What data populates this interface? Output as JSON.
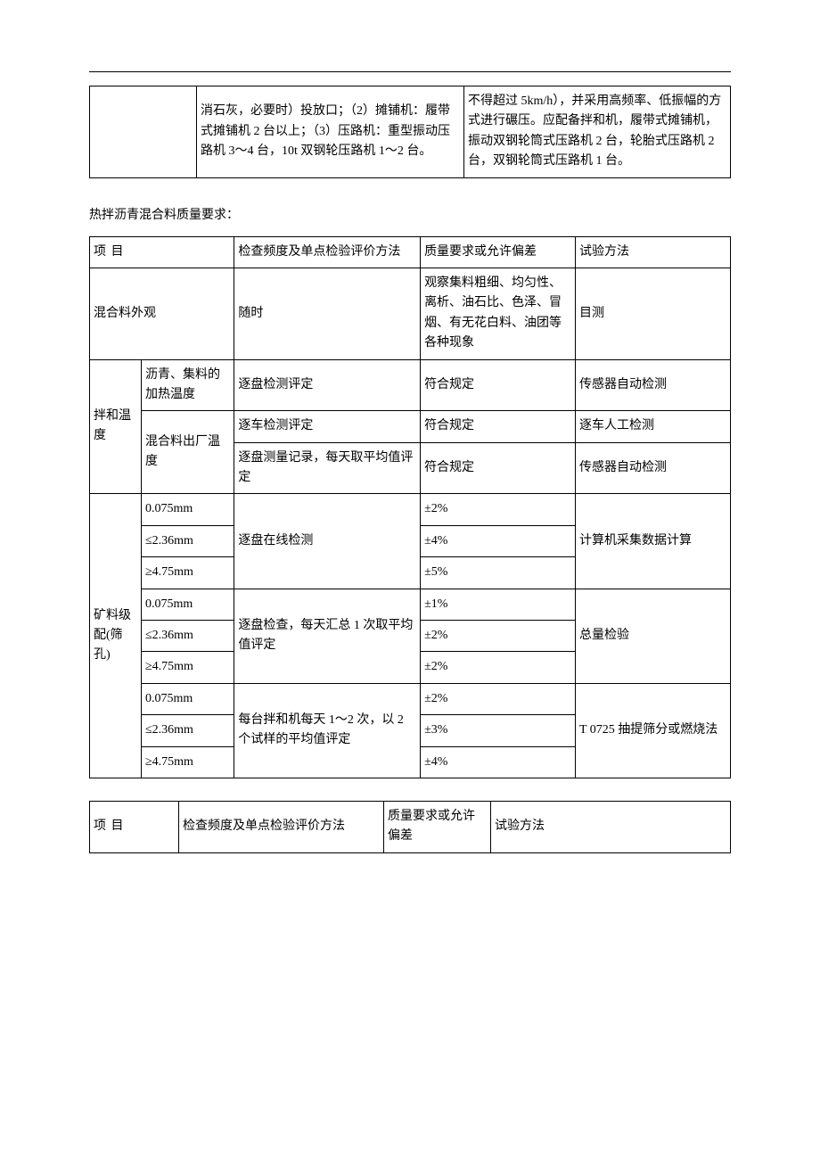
{
  "table1": {
    "left_empty": "",
    "col2": "消石灰，必要时）投放口；（2）摊铺机：履带式摊铺机 2 台以上；（3）压路机：重型振动压路机 3～4 台，10t 双钢轮压路机 1～2 台。",
    "col3": "不得超过 5km/h），并采用高频率、低振幅的方式进行碾压。应配备拌和机，履带式摊铺机，振动双钢轮筒式压路机 2 台，轮胎式压路机 2 台，双钢轮筒式压路机 1 台。"
  },
  "section_title": "热拌沥青混合料质量要求：",
  "table2": {
    "header": {
      "c1": "项 目",
      "c2": "检查频度及单点检验评价方法",
      "c3": "质量要求或允许偏差",
      "c4": "试验方法"
    },
    "row_appearance": {
      "c1": "混合料外观",
      "c2": "随时",
      "c3": "观察集料粗细、均匀性、离析、油石比、色泽、冒烟、有无花白料、油团等各种现象",
      "c4": "目测"
    },
    "temp_group": {
      "label": "拌和温度",
      "row1_c1": "沥青、集料的加热温度",
      "row1_c2": "逐盘检测评定",
      "row1_c3": "符合规定",
      "row1_c4": "传感器自动检测",
      "row2_c1": "混合料出厂温度",
      "row2_c2": "逐车检测评定",
      "row2_c3": "符合规定",
      "row2_c4": "逐车人工检测",
      "row3_c2": "逐盘测量记录，每天取平均值评定",
      "row3_c3": "符合规定",
      "row3_c4": "传感器自动检测"
    },
    "gradation": {
      "label": "矿料级配(筛孔)",
      "sizes": {
        "a": "0.075mm",
        "b": "≤2.36mm",
        "c": "≥4.75mm"
      },
      "group1": {
        "check": "逐盘在线检测",
        "v1": "±2%",
        "v2": "±4%",
        "v3": "±5%",
        "method": "计算机采集数据计算"
      },
      "group2": {
        "check": "逐盘检查，每天汇总 1 次取平均值评定",
        "v1": "±1%",
        "v2": "±2%",
        "v3": "±2%",
        "method": "总量检验"
      },
      "group3": {
        "check": "每台拌和机每天 1～2 次，以 2 个试样的平均值评定",
        "v1": "±2%",
        "v2": "±3%",
        "v3": "±4%",
        "method": "T 0725 抽提筛分或燃烧法"
      }
    }
  },
  "table3": {
    "c1": "项 目",
    "c2": "检查频度及单点检验评价方法",
    "c3": "质量要求或允许偏差",
    "c4": "试验方法"
  }
}
